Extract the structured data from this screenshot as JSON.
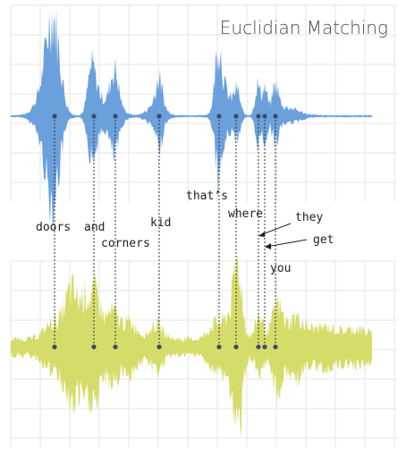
{
  "title": "Euclidian Matching",
  "colors": {
    "top_waveform": "#6aa0dc",
    "bottom_waveform": "#d6dc6a",
    "grid": "#e6e6e6",
    "marker": "#3a4a66",
    "text": "#222222"
  },
  "words": [
    {
      "id": "doors",
      "text": "doors"
    },
    {
      "id": "and",
      "text": "and"
    },
    {
      "id": "corners",
      "text": "corners"
    },
    {
      "id": "kid",
      "text": "kid"
    },
    {
      "id": "thats",
      "text": "that’s"
    },
    {
      "id": "where",
      "text": "where"
    },
    {
      "id": "they",
      "text": "they"
    },
    {
      "id": "get",
      "text": "get"
    },
    {
      "id": "you",
      "text": "you"
    }
  ]
}
